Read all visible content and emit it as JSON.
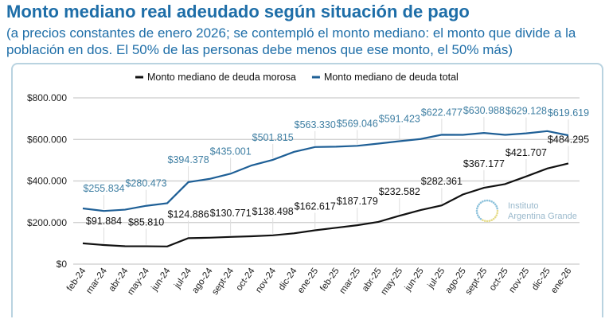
{
  "title": "Monto mediano real adeudado según situación de pago",
  "subtitle": "(a precios constantes de enero 2026; se contempló el monto mediano: el monto que divide a la población en dos. El 50% de las personas debe menos que ese monto, el 50% más)",
  "watermark": "Instituto Argentina Grande",
  "colors": {
    "morosa": "#111111",
    "total": "#1e5f96",
    "total_label": "#3f7fa3",
    "grid": "#cccccc"
  },
  "chart_data": {
    "type": "line",
    "title": "Monto mediano real adeudado según situación de pago",
    "xlabel": "",
    "ylabel": "",
    "ylim": [
      0,
      800000
    ],
    "yticks": [
      0,
      200000,
      400000,
      600000,
      800000
    ],
    "ytick_labels": [
      "$0",
      "$200.000",
      "$400.000",
      "$600.000",
      "$800.000"
    ],
    "grid": true,
    "legend_position": "top",
    "categories": [
      "feb-24",
      "mar-24",
      "abr-24",
      "may-24",
      "jun-24",
      "jul-24",
      "ago-24",
      "sept-24",
      "oct-24",
      "nov-24",
      "dic-24",
      "ene-25",
      "feb-25",
      "mar-25",
      "abr-25",
      "may-25",
      "jun-25",
      "jul-25",
      "ago-25",
      "sept-25",
      "oct-25",
      "nov-25",
      "dic-25",
      "ene-26"
    ],
    "series": [
      {
        "name": "Monto mediano de deuda morosa",
        "key": "morosa",
        "values": [
          100000,
          91884,
          86000,
          85810,
          85000,
          124886,
          127000,
          130771,
          134000,
          138498,
          148000,
          162617,
          175000,
          187179,
          203000,
          232582,
          260000,
          282361,
          335000,
          367177,
          385000,
          421707,
          460000,
          484295
        ],
        "labels": [
          "",
          "$91.884",
          "",
          "$85.810",
          "",
          "$124.886",
          "",
          "$130.771",
          "",
          "$138.498",
          "",
          "$162.617",
          "",
          "$187.179",
          "",
          "$232.582",
          "",
          "$282.361",
          "",
          "$367.177",
          "",
          "$421.707",
          "",
          "$484.295"
        ]
      },
      {
        "name": "Monto mediano de deuda total",
        "key": "total",
        "values": [
          268000,
          255834,
          262000,
          280473,
          293000,
          394378,
          410000,
          435001,
          475000,
          501815,
          540000,
          563330,
          565000,
          569046,
          580000,
          591423,
          602000,
          622477,
          622000,
          630988,
          622000,
          629128,
          640000,
          619619
        ],
        "labels": [
          "",
          "$255.834",
          "",
          "$280.473",
          "",
          "$394.378",
          "",
          "$435.001",
          "",
          "$501.815",
          "",
          "$563.330",
          "",
          "$569.046",
          "",
          "$591.423",
          "",
          "$622.477",
          "",
          "$630.988",
          "",
          "$629.128",
          "",
          "$619.619"
        ]
      }
    ]
  }
}
